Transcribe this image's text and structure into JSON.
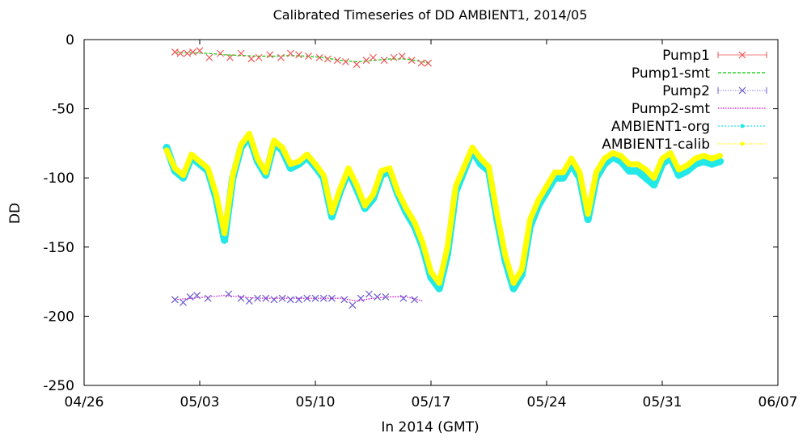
{
  "chart_data": {
    "type": "line",
    "title": "Calibrated Timeseries of DD AMBIENT1, 2014/05",
    "xlabel": "In 2014 (GMT)",
    "ylabel": "DD",
    "xlim": [
      "2014-04-26",
      "2014-06-07"
    ],
    "ylim": [
      -250,
      0
    ],
    "grid": false,
    "legend_position": "top-right",
    "x_ticks": [
      "04/26",
      "05/03",
      "05/10",
      "05/17",
      "05/24",
      "05/31",
      "06/07"
    ],
    "y_ticks": [
      "0",
      "-50",
      "-100",
      "-150",
      "-200",
      "-250"
    ],
    "series": [
      {
        "name": "Pump1",
        "style": "points",
        "color": "#ee5555",
        "marker": "x",
        "x": [
          "2014-05-01 12:00",
          "2014-05-01 20:00",
          "2014-05-02 06:00",
          "2014-05-02 14:00",
          "2014-05-03 00:00",
          "2014-05-03 14:00",
          "2014-05-04 06:00",
          "2014-05-04 20:00",
          "2014-05-05 12:00",
          "2014-05-06 03:00",
          "2014-05-06 14:00",
          "2014-05-07 06:00",
          "2014-05-07 22:00",
          "2014-05-08 12:00",
          "2014-05-09 00:00",
          "2014-05-09 14:00",
          "2014-05-10 06:00",
          "2014-05-10 18:00",
          "2014-05-11 08:00",
          "2014-05-11 20:00",
          "2014-05-12 12:00",
          "2014-05-13 02:00",
          "2014-05-13 12:00",
          "2014-05-14 04:00",
          "2014-05-14 18:00",
          "2014-05-15 06:00",
          "2014-05-15 20:00",
          "2014-05-16 10:00",
          "2014-05-16 20:00"
        ],
        "y": [
          -9,
          -10,
          -10,
          -9,
          -8,
          -13,
          -10,
          -13,
          -10,
          -14,
          -13,
          -11,
          -13,
          -10,
          -11,
          -12,
          -13,
          -14,
          -15,
          -16,
          -18,
          -15,
          -13,
          -15,
          -13,
          -12,
          -15,
          -17,
          -17
        ]
      },
      {
        "name": "Pump1-smt",
        "style": "dashed-line",
        "color": "#00cc00",
        "x": [
          "2014-05-01 12:00",
          "2014-05-02 12:00",
          "2014-05-03 12:00",
          "2014-05-04 12:00",
          "2014-05-05 12:00",
          "2014-05-06 12:00",
          "2014-05-07 12:00",
          "2014-05-08 12:00",
          "2014-05-09 12:00",
          "2014-05-10 12:00",
          "2014-05-11 12:00",
          "2014-05-12 12:00",
          "2014-05-13 12:00",
          "2014-05-14 12:00",
          "2014-05-15 12:00",
          "2014-05-16 12:00",
          "2014-05-16 20:00"
        ],
        "y": [
          -9.5,
          -9.5,
          -10,
          -11,
          -11.5,
          -12,
          -12,
          -11.5,
          -12,
          -13,
          -15,
          -16,
          -15,
          -14,
          -14,
          -16,
          -17
        ]
      },
      {
        "name": "Pump2",
        "style": "points",
        "color": "#6a5acd",
        "marker": "x",
        "x": [
          "2014-05-01 12:00",
          "2014-05-02 00:00",
          "2014-05-02 10:00",
          "2014-05-02 20:00",
          "2014-05-03 12:00",
          "2014-05-04 18:00",
          "2014-05-05 12:00",
          "2014-05-06 00:00",
          "2014-05-06 12:00",
          "2014-05-07 00:00",
          "2014-05-07 12:00",
          "2014-05-08 00:00",
          "2014-05-08 12:00",
          "2014-05-09 00:00",
          "2014-05-09 12:00",
          "2014-05-10 00:00",
          "2014-05-10 12:00",
          "2014-05-11 00:00",
          "2014-05-11 18:00",
          "2014-05-12 06:00",
          "2014-05-12 18:00",
          "2014-05-13 06:00",
          "2014-05-13 18:00",
          "2014-05-14 06:00",
          "2014-05-15 08:00",
          "2014-05-16 00:00"
        ],
        "y": [
          -188,
          -190,
          -186,
          -185,
          -187,
          -184,
          -187,
          -189,
          -187,
          -187,
          -188,
          -187,
          -188,
          -188,
          -187,
          -187,
          -187,
          -187,
          -188,
          -192,
          -187,
          -184,
          -186,
          -186,
          -187,
          -188
        ]
      },
      {
        "name": "Pump2-smt",
        "style": "dotted-line",
        "color": "#cc00cc",
        "x": [
          "2014-05-01 12:00",
          "2014-05-02 12:00",
          "2014-05-03 12:00",
          "2014-05-04 12:00",
          "2014-05-05 12:00",
          "2014-05-06 12:00",
          "2014-05-07 12:00",
          "2014-05-08 12:00",
          "2014-05-09 12:00",
          "2014-05-10 12:00",
          "2014-05-11 12:00",
          "2014-05-12 12:00",
          "2014-05-13 12:00",
          "2014-05-14 12:00",
          "2014-05-15 12:00",
          "2014-05-16 12:00"
        ],
        "y": [
          -188,
          -187,
          -186,
          -185,
          -186,
          -187,
          -187,
          -187,
          -187,
          -187,
          -187,
          -189,
          -187,
          -186,
          -186,
          -189
        ]
      },
      {
        "name": "AMBIENT1-org",
        "style": "dense-points",
        "color": "#22e8e8",
        "x": [
          "2014-05-01 00:00",
          "2014-05-01 12:00",
          "2014-05-02 00:00",
          "2014-05-02 12:00",
          "2014-05-03 00:00",
          "2014-05-03 12:00",
          "2014-05-04 00:00",
          "2014-05-04 12:00",
          "2014-05-05 00:00",
          "2014-05-05 12:00",
          "2014-05-06 00:00",
          "2014-05-06 12:00",
          "2014-05-07 00:00",
          "2014-05-07 12:00",
          "2014-05-08 00:00",
          "2014-05-08 12:00",
          "2014-05-09 00:00",
          "2014-05-09 12:00",
          "2014-05-10 00:00",
          "2014-05-10 12:00",
          "2014-05-11 00:00",
          "2014-05-11 12:00",
          "2014-05-12 00:00",
          "2014-05-12 12:00",
          "2014-05-13 00:00",
          "2014-05-13 12:00",
          "2014-05-14 00:00",
          "2014-05-14 12:00",
          "2014-05-15 00:00",
          "2014-05-15 12:00",
          "2014-05-16 00:00",
          "2014-05-16 12:00",
          "2014-05-17 00:00",
          "2014-05-17 12:00",
          "2014-05-18 00:00",
          "2014-05-18 12:00",
          "2014-05-19 00:00",
          "2014-05-19 12:00",
          "2014-05-20 00:00",
          "2014-05-20 12:00",
          "2014-05-21 00:00",
          "2014-05-21 12:00",
          "2014-05-22 00:00",
          "2014-05-22 12:00",
          "2014-05-23 00:00",
          "2014-05-23 12:00",
          "2014-05-24 00:00",
          "2014-05-24 12:00",
          "2014-05-25 00:00",
          "2014-05-25 12:00",
          "2014-05-26 00:00",
          "2014-05-26 12:00",
          "2014-05-27 00:00",
          "2014-05-27 12:00",
          "2014-05-28 00:00",
          "2014-05-28 12:00",
          "2014-05-29 00:00",
          "2014-05-29 12:00",
          "2014-05-30 00:00",
          "2014-05-30 12:00",
          "2014-05-31 00:00",
          "2014-05-31 12:00",
          "2014-06-01 00:00",
          "2014-06-01 12:00",
          "2014-06-02 00:00",
          "2014-06-02 12:00",
          "2014-06-03 00:00",
          "2014-06-03 12:00"
        ],
        "y": [
          -78,
          -95,
          -100,
          -85,
          -90,
          -95,
          -115,
          -145,
          -100,
          -78,
          -70,
          -88,
          -98,
          -75,
          -80,
          -93,
          -90,
          -85,
          -92,
          -100,
          -128,
          -110,
          -95,
          -108,
          -122,
          -115,
          -98,
          -95,
          -112,
          -125,
          -135,
          -150,
          -172,
          -180,
          -155,
          -110,
          -95,
          -80,
          -90,
          -95,
          -130,
          -160,
          -180,
          -170,
          -135,
          -120,
          -110,
          -100,
          -100,
          -90,
          -100,
          -130,
          -100,
          -90,
          -85,
          -88,
          -95,
          -95,
          -100,
          -105,
          -90,
          -85,
          -98,
          -95,
          -90,
          -88,
          -90,
          -88
        ]
      },
      {
        "name": "AMBIENT1-calib",
        "style": "dense-points",
        "color": "#ffff00",
        "x": [
          "2014-05-01 00:00",
          "2014-05-01 12:00",
          "2014-05-02 00:00",
          "2014-05-02 12:00",
          "2014-05-03 00:00",
          "2014-05-03 12:00",
          "2014-05-04 00:00",
          "2014-05-04 12:00",
          "2014-05-05 00:00",
          "2014-05-05 12:00",
          "2014-05-06 00:00",
          "2014-05-06 12:00",
          "2014-05-07 00:00",
          "2014-05-07 12:00",
          "2014-05-08 00:00",
          "2014-05-08 12:00",
          "2014-05-09 00:00",
          "2014-05-09 12:00",
          "2014-05-10 00:00",
          "2014-05-10 12:00",
          "2014-05-11 00:00",
          "2014-05-11 12:00",
          "2014-05-12 00:00",
          "2014-05-12 12:00",
          "2014-05-13 00:00",
          "2014-05-13 12:00",
          "2014-05-14 00:00",
          "2014-05-14 12:00",
          "2014-05-15 00:00",
          "2014-05-15 12:00",
          "2014-05-16 00:00",
          "2014-05-16 12:00",
          "2014-05-17 00:00",
          "2014-05-17 12:00",
          "2014-05-18 00:00",
          "2014-05-18 12:00",
          "2014-05-19 00:00",
          "2014-05-19 12:00",
          "2014-05-20 00:00",
          "2014-05-20 12:00",
          "2014-05-21 00:00",
          "2014-05-21 12:00",
          "2014-05-22 00:00",
          "2014-05-22 12:00",
          "2014-05-23 00:00",
          "2014-05-23 12:00",
          "2014-05-24 00:00",
          "2014-05-24 12:00",
          "2014-05-25 00:00",
          "2014-05-25 12:00",
          "2014-05-26 00:00",
          "2014-05-26 12:00",
          "2014-05-27 00:00",
          "2014-05-27 12:00",
          "2014-05-28 00:00",
          "2014-05-28 12:00",
          "2014-05-29 00:00",
          "2014-05-29 12:00",
          "2014-05-30 00:00",
          "2014-05-30 12:00",
          "2014-05-31 00:00",
          "2014-05-31 12:00",
          "2014-06-01 00:00",
          "2014-06-01 12:00",
          "2014-06-02 00:00",
          "2014-06-02 12:00",
          "2014-06-03 00:00",
          "2014-06-03 12:00"
        ],
        "y": [
          -80,
          -93,
          -98,
          -83,
          -88,
          -93,
          -112,
          -140,
          -98,
          -76,
          -68,
          -86,
          -96,
          -73,
          -78,
          -90,
          -88,
          -83,
          -90,
          -98,
          -125,
          -108,
          -93,
          -105,
          -120,
          -112,
          -95,
          -93,
          -110,
          -122,
          -132,
          -147,
          -168,
          -176,
          -150,
          -106,
          -92,
          -78,
          -86,
          -92,
          -126,
          -156,
          -176,
          -166,
          -130,
          -116,
          -106,
          -96,
          -96,
          -86,
          -96,
          -126,
          -96,
          -86,
          -82,
          -84,
          -90,
          -90,
          -94,
          -100,
          -86,
          -82,
          -94,
          -91,
          -86,
          -84,
          -86,
          -84
        ]
      }
    ]
  }
}
